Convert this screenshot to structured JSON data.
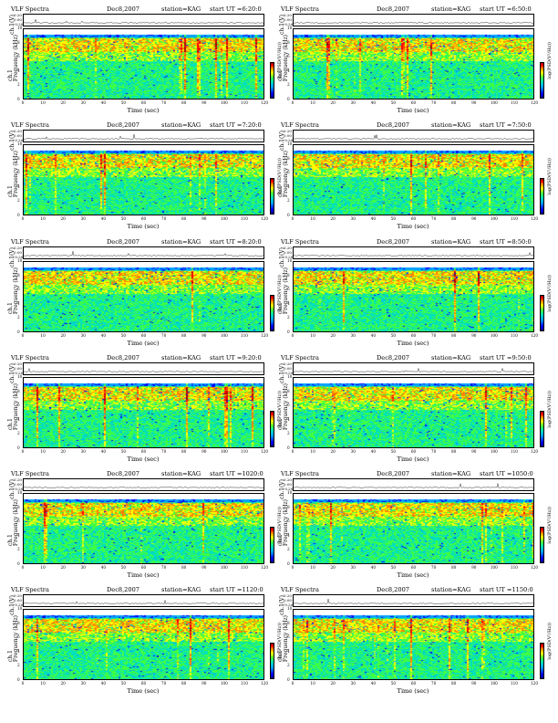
{
  "panels": [
    {
      "title": "VLF Spectra",
      "date": "Dec8,2007",
      "station": "station=KAG",
      "start": "start  UT =6:20:0"
    },
    {
      "title": "VLF Spectra",
      "date": "Dec8,2007",
      "station": "station=KAG",
      "start": "start  UT =6:50:0"
    },
    {
      "title": "VLF Spectra",
      "date": "Dec8,2007",
      "station": "station=KAG",
      "start": "start  UT =7:20:0"
    },
    {
      "title": "VLF Spectra",
      "date": "Dec8,2007",
      "station": "station=KAG",
      "start": "start  UT =7:50:0"
    },
    {
      "title": "VLF Spectra",
      "date": "Dec8,2007",
      "station": "station=KAG",
      "start": "start  UT =8:20:0"
    },
    {
      "title": "VLF Spectra",
      "date": "Dec8,2007",
      "station": "station=KAG",
      "start": "start  UT =8:50:0"
    },
    {
      "title": "VLF Spectra",
      "date": "Dec8,2007",
      "station": "station=KAG",
      "start": "start  UT =9:20:0"
    },
    {
      "title": "VLF Spectra",
      "date": "Dec8,2007",
      "station": "station=KAG",
      "start": "start  UT =9:50:0"
    },
    {
      "title": "VLF Spectra",
      "date": "Dec8,2007",
      "station": "station=KAG",
      "start": "start  UT =1020:0"
    },
    {
      "title": "VLF Spectra",
      "date": "Dec8,2007",
      "station": "station=KAG",
      "start": "start  UT =1050:0"
    },
    {
      "title": "VLF Spectra",
      "date": "Dec8,2007",
      "station": "station=KAG",
      "start": "start  UT =1120:0"
    },
    {
      "title": "VLF Spectra",
      "date": "Dec8,2007",
      "station": "station=KAG",
      "start": "start  UT =1150:0"
    }
  ],
  "labels": {
    "ch_axis": "ch.1(V)",
    "freq_axis": "Frequency  (kHz)",
    "freq_axis_prefix": "ch.1",
    "time_axis": "Time  (sec)",
    "colorbar": "log(PSD(V²/Hz))"
  },
  "chart_data": {
    "type": "heatmap",
    "panel_count": 12,
    "x_ticks": [
      "0",
      "10",
      "20",
      "30",
      "40",
      "50",
      "60",
      "70",
      "80",
      "90",
      "100",
      "110",
      "120"
    ],
    "xlim": [
      0,
      120
    ],
    "xlabel": "Time  (sec)",
    "freq_ticks": [
      "0",
      "2",
      "4",
      "6",
      "8",
      "10"
    ],
    "ylim": [
      0,
      10
    ],
    "ylabel": "Frequency  (kHz)",
    "ch_ticks": [
      "0.20",
      "0.00",
      "-0.20"
    ],
    "ch_ylabel": "ch.1(V)",
    "colorbar_label": "log(PSD(V²/Hz))",
    "colormap": [
      "#000090",
      "#0000ff",
      "#00a0ff",
      "#00e0c0",
      "#40ff40",
      "#ffff00",
      "#ff8000",
      "#ff0000",
      "#a00000"
    ]
  }
}
